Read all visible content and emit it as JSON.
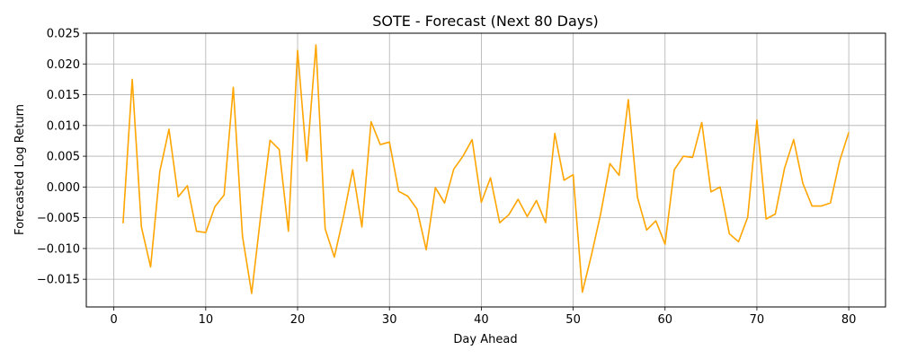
{
  "chart_data": {
    "type": "line",
    "title": "SOTE - Forecast (Next 80 Days)",
    "xlabel": "Day Ahead",
    "ylabel": "Forecasted Log Return",
    "xlim": [
      -3,
      84
    ],
    "ylim": [
      -0.0195,
      0.025
    ],
    "x_ticks": [
      0,
      10,
      20,
      30,
      40,
      50,
      60,
      70,
      80
    ],
    "x_tick_labels": [
      "0",
      "10",
      "20",
      "30",
      "40",
      "50",
      "60",
      "70",
      "80"
    ],
    "y_ticks": [
      -0.015,
      -0.01,
      -0.005,
      0.0,
      0.005,
      0.01,
      0.015,
      0.02,
      0.025
    ],
    "y_tick_labels": [
      "−0.015",
      "−0.010",
      "−0.005",
      "0.000",
      "0.005",
      "0.010",
      "0.015",
      "0.020",
      "0.025"
    ],
    "grid": true,
    "series": [
      {
        "color": "#FFA500",
        "x": [
          1,
          2,
          3,
          4,
          5,
          6,
          7,
          8,
          9,
          10,
          11,
          12,
          13,
          14,
          15,
          16,
          17,
          18,
          19,
          20,
          21,
          22,
          23,
          24,
          25,
          26,
          27,
          28,
          29,
          30,
          31,
          32,
          33,
          34,
          35,
          36,
          37,
          38,
          39,
          40,
          41,
          42,
          43,
          44,
          45,
          46,
          47,
          48,
          49,
          50,
          51,
          52,
          53,
          54,
          55,
          56,
          57,
          58,
          59,
          60,
          61,
          62,
          63,
          64,
          65,
          66,
          67,
          68,
          69,
          70,
          71,
          72,
          73,
          74,
          75,
          76,
          77,
          78,
          79,
          80
        ],
        "y": [
          -0.0059,
          0.0175,
          -0.0065,
          -0.013,
          0.0025,
          0.0094,
          -0.0016,
          0.0002,
          -0.0072,
          -0.0074,
          -0.0032,
          -0.0013,
          0.0162,
          -0.008,
          -0.0173,
          -0.0045,
          0.0076,
          0.0061,
          -0.0072,
          0.0222,
          0.0042,
          0.0231,
          -0.0068,
          -0.0114,
          -0.0048,
          0.0028,
          -0.0065,
          0.0106,
          0.0069,
          0.0073,
          -0.0007,
          -0.0015,
          -0.0036,
          -0.0102,
          -0.0001,
          -0.0026,
          0.0029,
          0.005,
          0.0077,
          -0.0025,
          0.0015,
          -0.0058,
          -0.0045,
          -0.002,
          -0.0048,
          -0.0022,
          -0.0058,
          0.0087,
          0.0011,
          0.002,
          -0.0171,
          -0.011,
          -0.0043,
          0.0038,
          0.0019,
          0.0142,
          -0.0017,
          -0.007,
          -0.0055,
          -0.0093,
          0.0028,
          0.005,
          0.0048,
          0.0105,
          -0.0008,
          0.0,
          -0.0076,
          -0.0089,
          -0.0049,
          0.0109,
          -0.0052,
          -0.0044,
          0.003,
          0.0077,
          0.0006,
          -0.0031,
          -0.0031,
          -0.0026,
          0.0042,
          0.0089
        ]
      }
    ]
  }
}
